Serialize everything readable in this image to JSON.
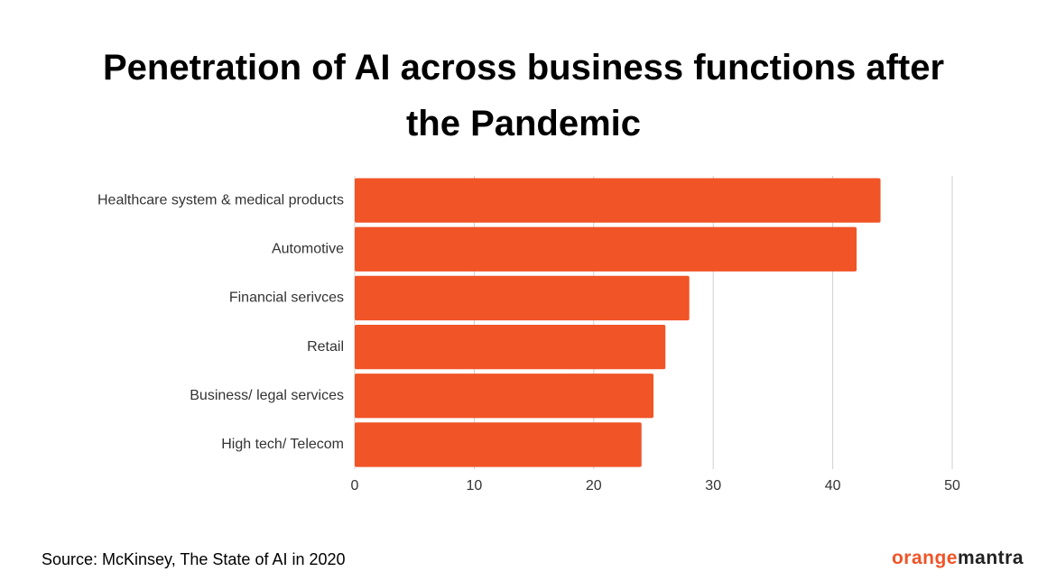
{
  "chart_data": {
    "type": "barh",
    "title": "Penetration of AI across business functions after the Pandemic",
    "categories": [
      "Healthcare system & medical products",
      "Automotive",
      "Financial serivces",
      "Retail",
      "Business/ legal services",
      "High tech/ Telecom"
    ],
    "values": [
      44,
      42,
      28,
      26,
      25,
      24
    ],
    "color": "#f05427",
    "xlim": [
      0,
      50
    ],
    "xticks": [
      0,
      10,
      20,
      30,
      40,
      50
    ],
    "grid": true,
    "source": "Source: McKinsey, The State of AI in 2020",
    "logo": [
      "orange",
      "mantra"
    ]
  }
}
